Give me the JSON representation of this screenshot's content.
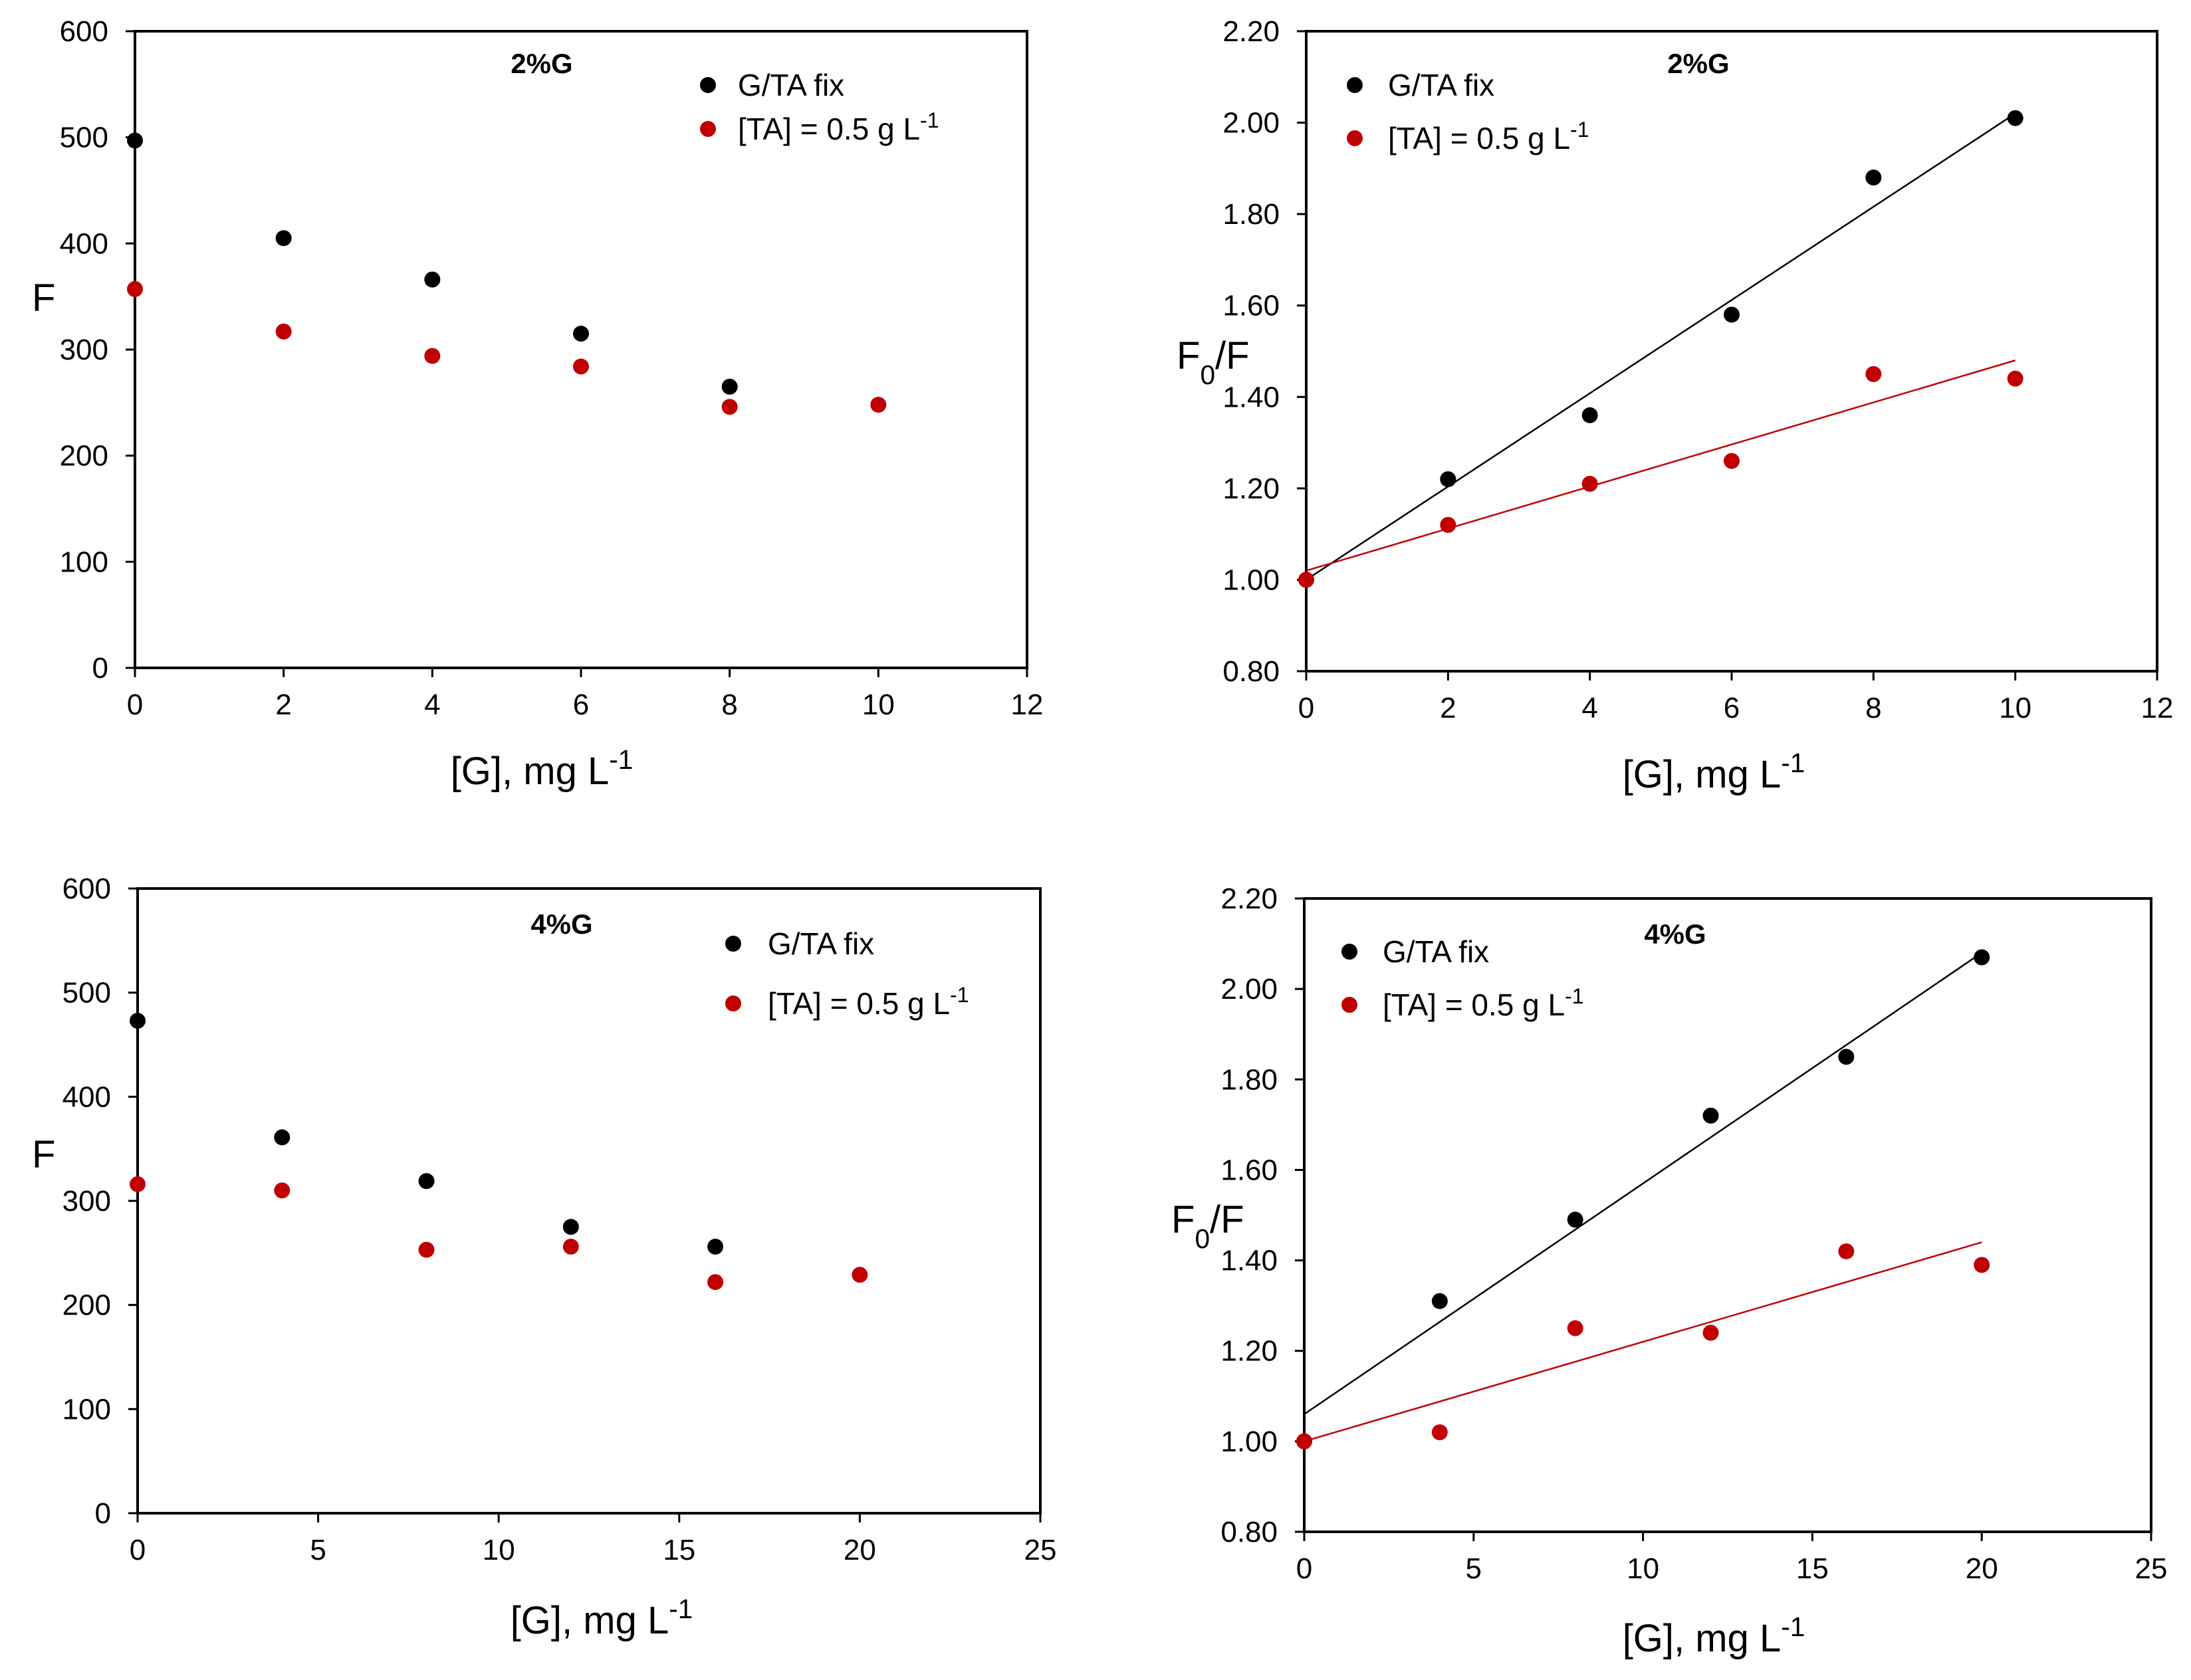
{
  "chart_data": [
    {
      "type": "scatter",
      "title": "2%G",
      "xlabel": "[G], mg L",
      "xlabel_sup": "-1",
      "ylabel": "F",
      "xlim": [
        0,
        12
      ],
      "ylim": [
        0,
        600
      ],
      "xticks": [
        "0",
        "2",
        "4",
        "6",
        "8",
        "10",
        "12"
      ],
      "yticks": [
        "0",
        "100",
        "200",
        "300",
        "400",
        "500",
        "600"
      ],
      "legend": "top-right",
      "series": [
        {
          "name": "G/TA fix",
          "name_sup": "",
          "color": "#000000",
          "x": [
            0,
            2,
            4,
            6,
            8
          ],
          "y": [
            497,
            405,
            366,
            315,
            265
          ]
        },
        {
          "name": "[TA] = 0.5 g L",
          "name_sup": "-1",
          "color": "#c00000",
          "x": [
            0,
            2,
            4,
            6,
            8,
            10
          ],
          "y": [
            357,
            317,
            294,
            284,
            246,
            248
          ]
        }
      ]
    },
    {
      "type": "scatter",
      "title": "2%G",
      "xlabel": "[G], mg L",
      "xlabel_sup": "-1",
      "ylabel": "F",
      "ylabel_sub": "0",
      "ylabel_rest": "/F",
      "xlim": [
        0,
        12
      ],
      "ylim": [
        0.8,
        2.2
      ],
      "xticks": [
        "0",
        "2",
        "4",
        "6",
        "8",
        "10",
        "12"
      ],
      "yticks": [
        "0.80",
        "1.00",
        "1.20",
        "1.40",
        "1.60",
        "1.80",
        "2.00",
        "2.20"
      ],
      "legend": "top-left",
      "series": [
        {
          "name": "G/TA fix",
          "name_sup": "",
          "color": "#000000",
          "x": [
            0,
            2,
            4,
            6,
            8,
            10
          ],
          "y": [
            1.0,
            1.22,
            1.36,
            1.58,
            1.88,
            2.01
          ],
          "fit": {
            "x": [
              0,
              10
            ],
            "y": [
              1.0,
              2.02
            ]
          }
        },
        {
          "name": "[TA] = 0.5 g L",
          "name_sup": "-1",
          "color": "#c00000",
          "x": [
            0,
            2,
            4,
            6,
            8,
            10
          ],
          "y": [
            1.0,
            1.12,
            1.21,
            1.26,
            1.45,
            1.44
          ],
          "fit": {
            "x": [
              0,
              10
            ],
            "y": [
              1.02,
              1.48
            ]
          }
        }
      ]
    },
    {
      "type": "scatter",
      "title": "4%G",
      "xlabel": "[G], mg L",
      "xlabel_sup": "-1",
      "ylabel": "F",
      "xlim": [
        0,
        25
      ],
      "ylim": [
        0,
        600
      ],
      "xticks": [
        "0",
        "5",
        "10",
        "15",
        "20",
        "25"
      ],
      "yticks": [
        "0",
        "100",
        "200",
        "300",
        "400",
        "500",
        "600"
      ],
      "legend": "top-right",
      "series": [
        {
          "name": "G/TA fix",
          "name_sup": "",
          "color": "#000000",
          "x": [
            0,
            4,
            8,
            12,
            16
          ],
          "y": [
            473,
            361,
            319,
            275,
            256
          ]
        },
        {
          "name": "[TA] = 0.5 g L",
          "name_sup": "-1",
          "color": "#c00000",
          "x": [
            0,
            4,
            8,
            12,
            16,
            20
          ],
          "y": [
            316,
            310,
            253,
            256,
            222,
            229
          ]
        }
      ]
    },
    {
      "type": "scatter",
      "title": "4%G",
      "xlabel": "[G], mg L",
      "xlabel_sup": "-1",
      "ylabel": "F",
      "ylabel_sub": "0",
      "ylabel_rest": "/F",
      "xlim": [
        0,
        25
      ],
      "ylim": [
        0.8,
        2.2
      ],
      "xticks": [
        "0",
        "5",
        "10",
        "15",
        "20",
        "25"
      ],
      "yticks": [
        "0.80",
        "1.00",
        "1.20",
        "1.40",
        "1.60",
        "1.80",
        "2.00",
        "2.20"
      ],
      "legend": "top-left",
      "series": [
        {
          "name": "G/TA fix",
          "name_sup": "",
          "color": "#000000",
          "x": [
            0,
            4,
            8,
            12,
            16,
            20
          ],
          "y": [
            1.0,
            1.31,
            1.49,
            1.72,
            1.85,
            2.07
          ],
          "fit": {
            "x": [
              0,
              20
            ],
            "y": [
              1.06,
              2.08
            ]
          }
        },
        {
          "name": "[TA] = 0.5 g L",
          "name_sup": "-1",
          "color": "#c00000",
          "x": [
            0,
            4,
            8,
            12,
            16,
            20
          ],
          "y": [
            1.0,
            1.02,
            1.25,
            1.24,
            1.42,
            1.39
          ],
          "fit": {
            "x": [
              0,
              20
            ],
            "y": [
              1.0,
              1.44
            ]
          }
        }
      ]
    }
  ]
}
